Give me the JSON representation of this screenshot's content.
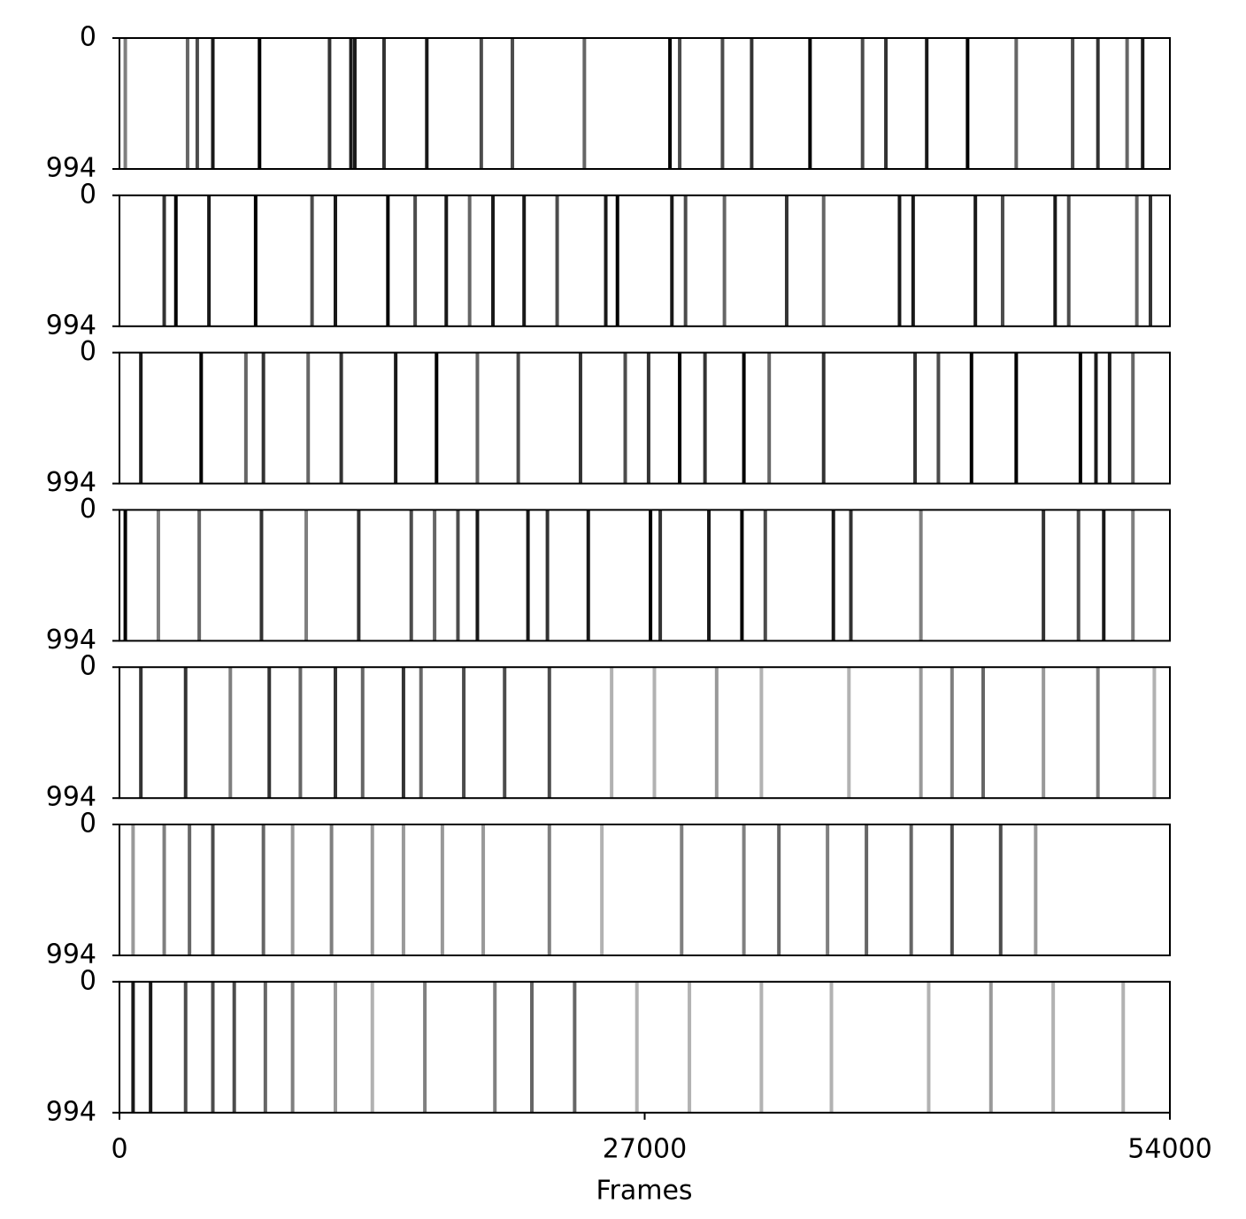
{
  "chart_data": {
    "type": "heatmap",
    "xlabel": "Frames",
    "xlim": [
      0,
      54000
    ],
    "xticks": [
      0,
      27000,
      54000
    ],
    "color": "#000000",
    "panels": [
      {
        "ylim": [
          994,
          0
        ],
        "yticks": [
          0,
          994
        ],
        "x": [
          300,
          3500,
          4000,
          4800,
          7200,
          10800,
          11900,
          12100,
          13600,
          15800,
          18600,
          20200,
          23900,
          28300,
          28800,
          31000,
          32500,
          35500,
          38200,
          39400,
          41500,
          43600,
          46100,
          49000,
          50300,
          51800,
          52600
        ],
        "values": [
          0.5,
          0.6,
          0.7,
          0.9,
          1,
          0.8,
          0.9,
          0.9,
          0.8,
          0.9,
          0.7,
          0.7,
          0.6,
          1,
          0.7,
          0.7,
          0.8,
          1,
          0.7,
          0.8,
          0.9,
          1,
          0.6,
          0.7,
          0.8,
          0.6,
          0.9
        ]
      },
      {
        "ylim": [
          994,
          0
        ],
        "yticks": [
          0,
          994
        ],
        "x": [
          2300,
          2900,
          4600,
          7000,
          9900,
          11100,
          13800,
          15200,
          16800,
          18000,
          19200,
          20800,
          22500,
          25000,
          25600,
          28400,
          29100,
          31100,
          34300,
          36200,
          40100,
          40800,
          44000,
          45400,
          48100,
          48800,
          52300,
          53000
        ],
        "values": [
          0.8,
          1,
          0.9,
          1,
          0.7,
          0.9,
          1,
          0.7,
          0.9,
          0.6,
          0.9,
          0.9,
          0.7,
          0.9,
          1,
          0.9,
          0.7,
          0.6,
          0.8,
          0.6,
          0.9,
          0.9,
          0.9,
          0.7,
          0.9,
          0.7,
          0.6,
          0.8
        ]
      },
      {
        "ylim": [
          994,
          0
        ],
        "yticks": [
          0,
          994
        ],
        "x": [
          1100,
          4200,
          6500,
          7400,
          9700,
          11400,
          14200,
          16300,
          18400,
          20500,
          23700,
          26000,
          27200,
          28800,
          30100,
          32100,
          33400,
          36200,
          40900,
          42100,
          43800,
          46100,
          49400,
          50200,
          50900,
          52100
        ],
        "values": [
          0.9,
          1,
          0.6,
          0.8,
          0.6,
          0.8,
          0.9,
          1,
          0.6,
          0.7,
          0.8,
          0.7,
          0.8,
          1,
          0.8,
          1,
          0.6,
          0.8,
          0.8,
          0.7,
          1,
          1,
          1,
          0.9,
          0.9,
          0.6
        ]
      },
      {
        "ylim": [
          994,
          0
        ],
        "yticks": [
          0,
          994
        ],
        "x": [
          300,
          2000,
          4100,
          7300,
          9600,
          12300,
          15000,
          16200,
          17400,
          18400,
          21000,
          22000,
          24100,
          27300,
          27800,
          30300,
          32000,
          33200,
          36700,
          37600,
          41200,
          47500,
          49300,
          50600,
          52100
        ],
        "values": [
          1,
          0.5,
          0.6,
          0.8,
          0.5,
          0.8,
          0.7,
          0.6,
          0.7,
          0.9,
          0.9,
          0.8,
          0.9,
          1,
          0.8,
          0.9,
          1,
          0.7,
          0.9,
          0.8,
          0.5,
          0.8,
          0.7,
          0.9,
          0.5
        ]
      },
      {
        "ylim": [
          994,
          0
        ],
        "yticks": [
          0,
          994
        ],
        "x": [
          1100,
          3400,
          5700,
          7700,
          9300,
          11100,
          12500,
          14600,
          15500,
          17700,
          19800,
          22100,
          25300,
          27500,
          30700,
          33000,
          37500,
          41200,
          42800,
          44400,
          47500,
          50300,
          53200
        ],
        "values": [
          0.8,
          0.8,
          0.5,
          0.8,
          0.6,
          0.8,
          0.6,
          0.8,
          0.6,
          0.7,
          0.7,
          0.7,
          0.3,
          0.3,
          0.4,
          0.3,
          0.3,
          0.4,
          0.5,
          0.6,
          0.4,
          0.5,
          0.3
        ]
      },
      {
        "ylim": [
          994,
          0
        ],
        "yticks": [
          0,
          994
        ],
        "x": [
          700,
          2300,
          3600,
          4800,
          7400,
          8900,
          10900,
          13000,
          14600,
          16600,
          18700,
          22100,
          24800,
          28900,
          32100,
          33900,
          36400,
          38400,
          40700,
          42800,
          45300,
          47100
        ],
        "values": [
          0.4,
          0.5,
          0.6,
          0.7,
          0.6,
          0.4,
          0.5,
          0.4,
          0.4,
          0.4,
          0.4,
          0.5,
          0.3,
          0.5,
          0.5,
          0.6,
          0.5,
          0.6,
          0.6,
          0.7,
          0.7,
          0.4
        ]
      },
      {
        "ylim": [
          994,
          0
        ],
        "yticks": [
          0,
          994
        ],
        "x": [
          700,
          1600,
          3400,
          4800,
          5900,
          7500,
          8900,
          11100,
          13000,
          15700,
          19300,
          21200,
          23400,
          26600,
          29300,
          33000,
          36600,
          41600,
          44800,
          48000,
          51600
        ],
        "values": [
          0.9,
          0.9,
          0.7,
          0.7,
          0.7,
          0.6,
          0.5,
          0.4,
          0.3,
          0.5,
          0.5,
          0.6,
          0.6,
          0.3,
          0.3,
          0.3,
          0.3,
          0.3,
          0.4,
          0.3,
          0.3
        ]
      }
    ]
  }
}
